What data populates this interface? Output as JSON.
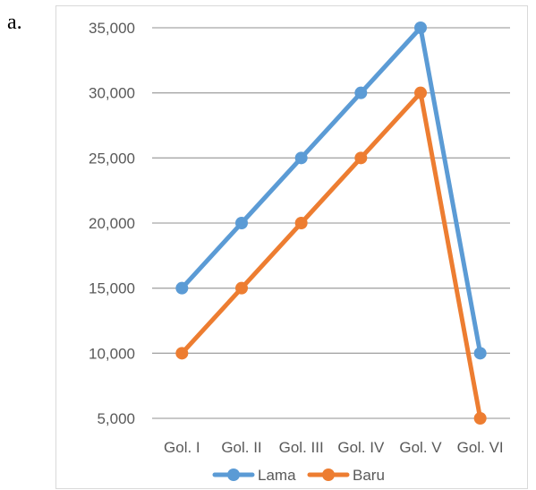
{
  "figure_label": "a.",
  "colors": {
    "lama": "#5b9bd5",
    "baru": "#ed7d31",
    "grid": "#a6a6a6",
    "text": "#595959"
  },
  "chart_data": {
    "type": "line",
    "title": "",
    "xlabel": "",
    "ylabel": "",
    "categories": [
      "Gol. I",
      "Gol. II",
      "Gol. III",
      "Gol. IV",
      "Gol. V",
      "Gol. VI"
    ],
    "series": [
      {
        "name": "Lama",
        "values": [
          15000,
          20000,
          25000,
          30000,
          35000,
          10000
        ]
      },
      {
        "name": "Baru",
        "values": [
          10000,
          15000,
          20000,
          25000,
          30000,
          5000
        ]
      }
    ],
    "ylim": [
      5000,
      35000
    ],
    "yticks": [
      35000,
      30000,
      25000,
      20000,
      15000,
      10000,
      5000
    ],
    "ytick_labels": [
      "35,000",
      "30,000",
      "25,000",
      "20,000",
      "15,000",
      "10,000",
      "5,000"
    ],
    "grid": true,
    "legend": "bottom"
  }
}
